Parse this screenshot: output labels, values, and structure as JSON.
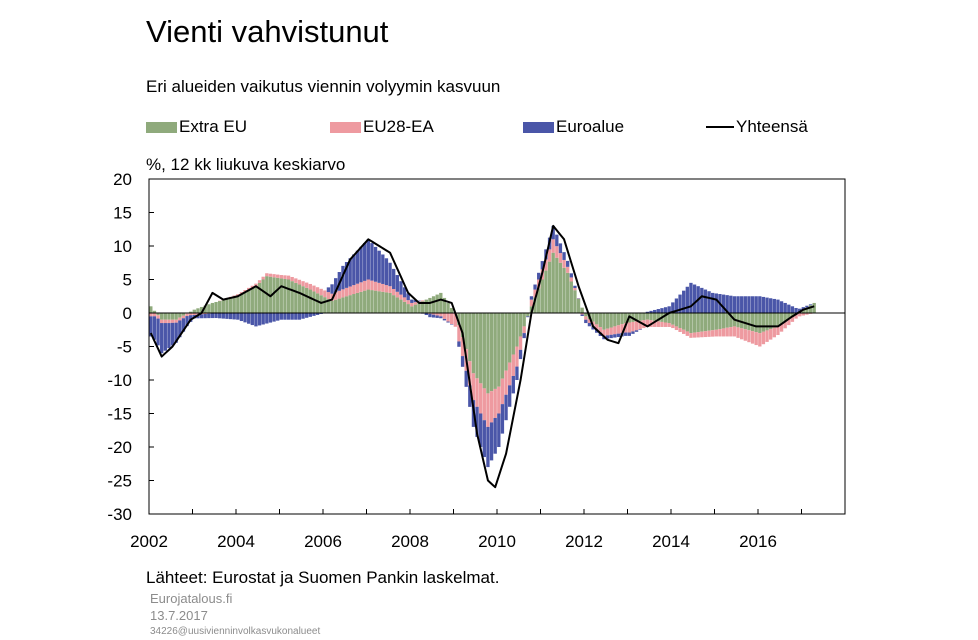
{
  "title": "Vienti vahvistunut",
  "subtitle": "Eri alueiden vaikutus viennin volyymin kasvuun",
  "unit_label": "%, 12 kk liukuva keskiarvo",
  "source": "Lähteet: Eurostat ja Suomen Pankin laskelmat.",
  "footer": {
    "site": "Eurojatalous.fi",
    "date": "13.7.2017",
    "code": "34226@uusivienninvolkasvukonalueet"
  },
  "chart_data": {
    "type": "bar",
    "stacked": true,
    "frequency": "monthly",
    "x_start": "2002-01",
    "x_end": "2017-04",
    "ylim": [
      -30,
      20
    ],
    "yticks": [
      "20",
      "15",
      "10",
      "5",
      "0",
      "-5",
      "-10",
      "-15",
      "-20",
      "-25",
      "-30"
    ],
    "xticks": [
      "2002",
      "2004",
      "2006",
      "2008",
      "2010",
      "2012",
      "2014",
      "2016"
    ],
    "grid": false,
    "legend_position": "top",
    "series": [
      {
        "name": "Extra EU",
        "color": "#8faa7c",
        "anchors": [
          [
            "2002-01",
            1
          ],
          [
            "2002-04",
            -1
          ],
          [
            "2002-08",
            -1
          ],
          [
            "2003-01",
            0.5
          ],
          [
            "2003-06",
            1.5
          ],
          [
            "2004-01",
            2.5
          ],
          [
            "2004-06",
            4
          ],
          [
            "2004-09",
            5.5
          ],
          [
            "2005-03",
            5
          ],
          [
            "2005-09",
            3.5
          ],
          [
            "2006-03",
            1.8
          ],
          [
            "2006-07",
            2.5
          ],
          [
            "2007-01",
            3.5
          ],
          [
            "2007-07",
            3
          ],
          [
            "2008-01",
            1
          ],
          [
            "2008-05",
            2
          ],
          [
            "2008-09",
            3
          ],
          [
            "2009-01",
            0
          ],
          [
            "2009-06",
            -9
          ],
          [
            "2009-10",
            -12
          ],
          [
            "2010-01",
            -11
          ],
          [
            "2010-06",
            -5
          ],
          [
            "2010-10",
            1
          ],
          [
            "2011-04",
            9
          ],
          [
            "2011-08",
            6
          ],
          [
            "2012-01",
            -0.5
          ],
          [
            "2012-06",
            -2.5
          ],
          [
            "2012-12",
            -1.5
          ],
          [
            "2013-06",
            -1
          ],
          [
            "2013-12",
            -1.5
          ],
          [
            "2014-06",
            -3
          ],
          [
            "2015-01",
            -2.5
          ],
          [
            "2015-06",
            -2
          ],
          [
            "2016-01",
            -3
          ],
          [
            "2016-06",
            -2
          ],
          [
            "2017-01",
            0.5
          ],
          [
            "2017-04",
            1.5
          ]
        ]
      },
      {
        "name": "EU28-EA",
        "color": "#ee9aa0",
        "anchors": [
          [
            "2002-01",
            -0.5
          ],
          [
            "2002-06",
            -0.5
          ],
          [
            "2003-01",
            -0.3
          ],
          [
            "2004-01",
            0.3
          ],
          [
            "2005-01",
            0.5
          ],
          [
            "2006-01",
            1
          ],
          [
            "2007-01",
            1.5
          ],
          [
            "2008-01",
            0.5
          ],
          [
            "2008-09",
            -0.5
          ],
          [
            "2009-06",
            -4
          ],
          [
            "2009-10",
            -5
          ],
          [
            "2010-01",
            -4
          ],
          [
            "2010-06",
            -3
          ],
          [
            "2010-10",
            1
          ],
          [
            "2011-04",
            2
          ],
          [
            "2012-01",
            -0.5
          ],
          [
            "2013-01",
            -1.5
          ],
          [
            "2014-01",
            -0.5
          ],
          [
            "2015-01",
            -1
          ],
          [
            "2015-06",
            -1.5
          ],
          [
            "2016-01",
            -2
          ],
          [
            "2016-08",
            -1
          ],
          [
            "2017-04",
            0
          ]
        ]
      },
      {
        "name": "Euroalue",
        "color": "#4a56a8",
        "anchors": [
          [
            "2002-01",
            -3
          ],
          [
            "2002-04",
            -4.5
          ],
          [
            "2002-08",
            -3
          ],
          [
            "2003-01",
            -0.5
          ],
          [
            "2004-01",
            -1
          ],
          [
            "2004-06",
            -2
          ],
          [
            "2005-01",
            -1
          ],
          [
            "2005-06",
            -1
          ],
          [
            "2006-01",
            0
          ],
          [
            "2006-06",
            3.5
          ],
          [
            "2007-01",
            6
          ],
          [
            "2007-06",
            4
          ],
          [
            "2008-01",
            0.5
          ],
          [
            "2008-06",
            -0.5
          ],
          [
            "2009-01",
            0
          ],
          [
            "2009-06",
            -4
          ],
          [
            "2009-10",
            -6
          ],
          [
            "2010-01",
            -5
          ],
          [
            "2010-06",
            -2
          ],
          [
            "2010-10",
            0.5
          ],
          [
            "2011-04",
            2
          ],
          [
            "2012-01",
            -0.5
          ],
          [
            "2012-06",
            -0.5
          ],
          [
            "2013-01",
            -0.5
          ],
          [
            "2013-12",
            1
          ],
          [
            "2014-06",
            4.5
          ],
          [
            "2014-12",
            3
          ],
          [
            "2015-06",
            2.5
          ],
          [
            "2016-01",
            2.5
          ],
          [
            "2016-06",
            2
          ],
          [
            "2016-12",
            0.5
          ],
          [
            "2017-04",
            0
          ]
        ]
      }
    ],
    "line": {
      "name": "Yhteensä",
      "color": "#000000",
      "anchors": [
        [
          "2002-01",
          -3
        ],
        [
          "2002-04",
          -6.5
        ],
        [
          "2002-07",
          -5
        ],
        [
          "2002-12",
          -1
        ],
        [
          "2003-03",
          0
        ],
        [
          "2003-06",
          3
        ],
        [
          "2003-09",
          2
        ],
        [
          "2004-01",
          2.5
        ],
        [
          "2004-06",
          4
        ],
        [
          "2004-10",
          2.5
        ],
        [
          "2005-01",
          4
        ],
        [
          "2005-06",
          3
        ],
        [
          "2005-12",
          1.5
        ],
        [
          "2006-03",
          2
        ],
        [
          "2006-08",
          8
        ],
        [
          "2007-01",
          11
        ],
        [
          "2007-07",
          9
        ],
        [
          "2007-12",
          3
        ],
        [
          "2008-03",
          1.5
        ],
        [
          "2008-06",
          1.5
        ],
        [
          "2008-09",
          2
        ],
        [
          "2008-12",
          1.5
        ],
        [
          "2009-03",
          -3
        ],
        [
          "2009-07",
          -18
        ],
        [
          "2009-10",
          -25
        ],
        [
          "2009-12",
          -26
        ],
        [
          "2010-03",
          -21
        ],
        [
          "2010-07",
          -10
        ],
        [
          "2010-10",
          0
        ],
        [
          "2011-01",
          6
        ],
        [
          "2011-04",
          13
        ],
        [
          "2011-07",
          11
        ],
        [
          "2011-11",
          4
        ],
        [
          "2012-03",
          -2
        ],
        [
          "2012-07",
          -4
        ],
        [
          "2012-10",
          -4.5
        ],
        [
          "2013-01",
          -0.5
        ],
        [
          "2013-06",
          -2
        ],
        [
          "2013-12",
          0
        ],
        [
          "2014-06",
          1
        ],
        [
          "2014-09",
          2.5
        ],
        [
          "2015-01",
          2
        ],
        [
          "2015-06",
          -1
        ],
        [
          "2015-12",
          -2
        ],
        [
          "2016-06",
          -2
        ],
        [
          "2016-10",
          -0.5
        ],
        [
          "2017-01",
          0.5
        ],
        [
          "2017-04",
          1
        ]
      ]
    }
  }
}
